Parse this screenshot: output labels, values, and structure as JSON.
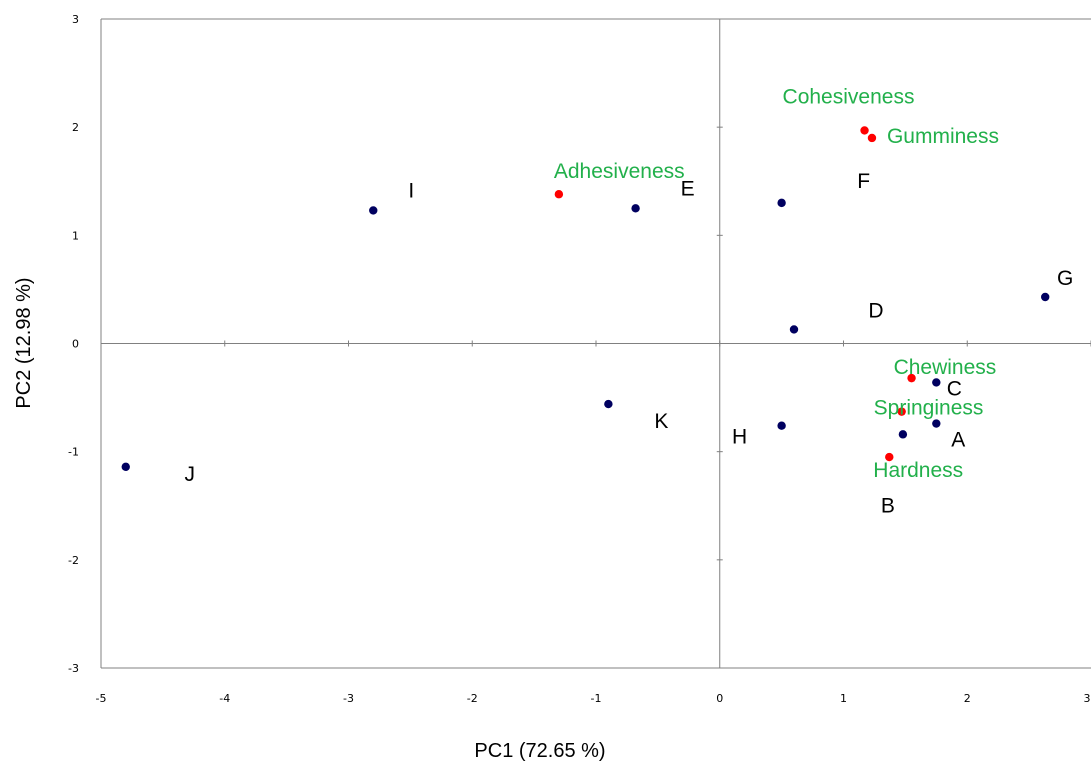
{
  "chart_data": {
    "type": "scatter",
    "xlabel": "PC1 (72.65 %)",
    "ylabel": "PC2 (12.98 %)",
    "xlim": [
      -5,
      3
    ],
    "ylim": [
      -3,
      3
    ],
    "xticks": [
      -5,
      -4,
      -3,
      -2,
      -1,
      0,
      1,
      2,
      3
    ],
    "yticks": [
      -3,
      -2,
      -1,
      0,
      1,
      2,
      3
    ],
    "grid": false,
    "legend": "none",
    "colors": {
      "observations": "#000060",
      "variables": "#ff0000",
      "variable_labels": "#22b04b"
    },
    "observations": [
      {
        "label": "A",
        "x": 1.75,
        "y": -0.74
      },
      {
        "label": "B",
        "x": 1.48,
        "y": -0.84
      },
      {
        "label": "C",
        "x": 1.75,
        "y": -0.36
      },
      {
        "label": "D",
        "x": 0.6,
        "y": 0.13
      },
      {
        "label": "E",
        "x": -0.68,
        "y": 1.25
      },
      {
        "label": "F",
        "x": 0.5,
        "y": 1.3
      },
      {
        "label": "G",
        "x": 2.63,
        "y": 0.43
      },
      {
        "label": "H",
        "x": 0.5,
        "y": -0.76
      },
      {
        "label": "I",
        "x": -2.8,
        "y": 1.23
      },
      {
        "label": "J",
        "x": -4.8,
        "y": -1.14
      },
      {
        "label": "K",
        "x": -0.9,
        "y": -0.56
      }
    ],
    "variables": [
      {
        "label": "Adhesiveness",
        "x": -1.3,
        "y": 1.38
      },
      {
        "label": "Cohesiveness",
        "x": 1.17,
        "y": 1.97
      },
      {
        "label": "Gumminess",
        "x": 1.23,
        "y": 1.9
      },
      {
        "label": "Chewiness",
        "x": 1.55,
        "y": -0.32
      },
      {
        "label": "Springiness",
        "x": 1.47,
        "y": -0.63
      },
      {
        "label": "Hardness",
        "x": 1.37,
        "y": -1.05
      }
    ]
  }
}
